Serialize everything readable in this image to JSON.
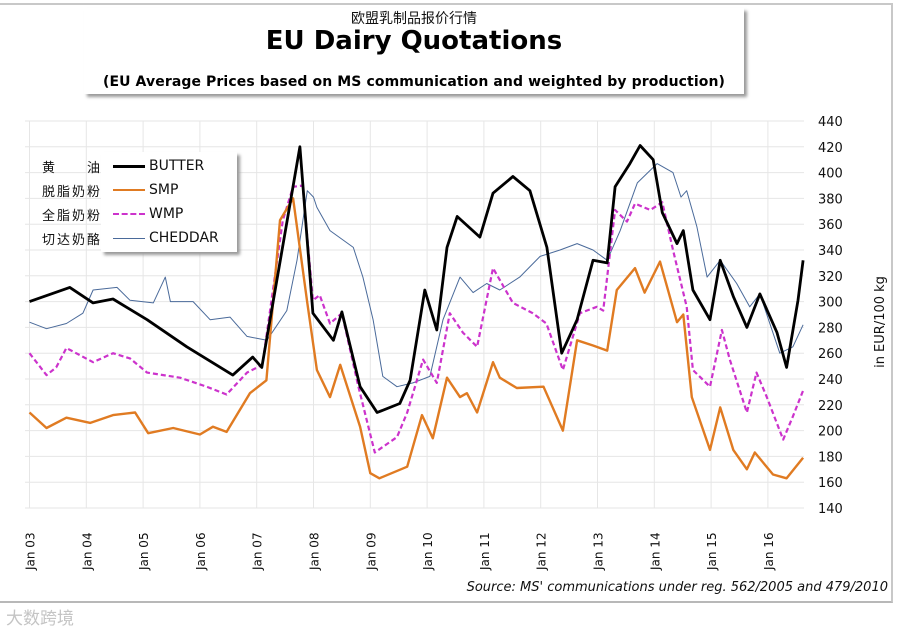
{
  "header": {
    "cn_title": "欧盟乳制品报价行情",
    "title": "EU Dairy Quotations",
    "subtitle": "(EU Average Prices based on MS communication and weighted by production)"
  },
  "source": "Source: MS' communications under reg. 562/2005 and 479/2010",
  "watermark": "大数跨境",
  "chart_data": {
    "type": "line",
    "title": "EU Dairy Quotations",
    "xlabel": "",
    "ylabel": "in EUR/100 kg",
    "xlim": [
      2002.92,
      2016.63
    ],
    "ylim": [
      140,
      440
    ],
    "grid": true,
    "legend_position": "top-left",
    "x_ticks": [
      2003,
      2004,
      2005,
      2006,
      2007,
      2008,
      2009,
      2010,
      2011,
      2012,
      2013,
      2014,
      2015,
      2016
    ],
    "x_tick_labels": [
      "Jan 03",
      "Jan 04",
      "Jan 05",
      "Jan 06",
      "Jan 07",
      "Jan 08",
      "Jan 09",
      "Jan 10",
      "Jan 11",
      "Jan 12",
      "Jan 13",
      "Jan 14",
      "Jan 15",
      "Jan 16"
    ],
    "y_ticks": [
      140,
      160,
      180,
      200,
      220,
      240,
      260,
      280,
      300,
      320,
      340,
      360,
      380,
      400,
      420,
      440
    ],
    "y_tick_labels": [
      "140",
      "160",
      "180",
      "200",
      "220",
      "240",
      "260",
      "280",
      "300",
      "320",
      "340",
      "360",
      "380",
      "400",
      "420",
      "440"
    ],
    "series": [
      {
        "name": "BUTTER",
        "cn_name": "黄　　油",
        "color": "#000000",
        "style": "solid-thick",
        "points": [
          [
            2003.0,
            300
          ],
          [
            2003.71,
            311
          ],
          [
            2004.12,
            299
          ],
          [
            2004.47,
            302
          ],
          [
            2005.07,
            286
          ],
          [
            2005.77,
            265
          ],
          [
            2006.58,
            243
          ],
          [
            2006.93,
            257
          ],
          [
            2007.09,
            249
          ],
          [
            2007.76,
            420
          ],
          [
            2007.99,
            291
          ],
          [
            2008.35,
            270
          ],
          [
            2008.5,
            292
          ],
          [
            2008.82,
            234
          ],
          [
            2009.12,
            214
          ],
          [
            2009.52,
            221
          ],
          [
            2009.7,
            239
          ],
          [
            2009.96,
            309
          ],
          [
            2010.17,
            278
          ],
          [
            2010.35,
            342
          ],
          [
            2010.53,
            366
          ],
          [
            2010.93,
            350
          ],
          [
            2011.16,
            384
          ],
          [
            2011.51,
            397
          ],
          [
            2011.81,
            386
          ],
          [
            2012.11,
            342
          ],
          [
            2012.37,
            260
          ],
          [
            2012.64,
            286
          ],
          [
            2012.92,
            332
          ],
          [
            2013.17,
            330
          ],
          [
            2013.31,
            389
          ],
          [
            2013.57,
            407
          ],
          [
            2013.75,
            421
          ],
          [
            2013.98,
            410
          ],
          [
            2014.14,
            369
          ],
          [
            2014.4,
            345
          ],
          [
            2014.51,
            355
          ],
          [
            2014.68,
            309
          ],
          [
            2014.98,
            286
          ],
          [
            2015.16,
            332
          ],
          [
            2015.39,
            304
          ],
          [
            2015.63,
            280
          ],
          [
            2015.86,
            306
          ],
          [
            2016.16,
            276
          ],
          [
            2016.33,
            249
          ],
          [
            2016.53,
            301
          ],
          [
            2016.62,
            332
          ]
        ]
      },
      {
        "name": "SMP",
        "cn_name": "脱脂奶粉",
        "color": "#e07b22",
        "style": "solid",
        "points": [
          [
            2003.0,
            214
          ],
          [
            2003.3,
            202
          ],
          [
            2003.65,
            210
          ],
          [
            2004.07,
            206
          ],
          [
            2004.47,
            212
          ],
          [
            2004.86,
            214
          ],
          [
            2005.09,
            198
          ],
          [
            2005.53,
            202
          ],
          [
            2006.0,
            197
          ],
          [
            2006.23,
            203
          ],
          [
            2006.47,
            199
          ],
          [
            2006.88,
            229
          ],
          [
            2007.17,
            239
          ],
          [
            2007.41,
            363
          ],
          [
            2007.64,
            380
          ],
          [
            2007.89,
            299
          ],
          [
            2008.06,
            247
          ],
          [
            2008.29,
            226
          ],
          [
            2008.47,
            251
          ],
          [
            2008.82,
            203
          ],
          [
            2009.0,
            167
          ],
          [
            2009.16,
            163
          ],
          [
            2009.65,
            172
          ],
          [
            2009.91,
            212
          ],
          [
            2010.1,
            194
          ],
          [
            2010.35,
            241
          ],
          [
            2010.58,
            226
          ],
          [
            2010.7,
            229
          ],
          [
            2010.88,
            214
          ],
          [
            2011.16,
            253
          ],
          [
            2011.28,
            241
          ],
          [
            2011.58,
            233
          ],
          [
            2012.05,
            234
          ],
          [
            2012.39,
            200
          ],
          [
            2012.64,
            270
          ],
          [
            2012.92,
            266
          ],
          [
            2013.17,
            262
          ],
          [
            2013.34,
            309
          ],
          [
            2013.66,
            326
          ],
          [
            2013.83,
            307
          ],
          [
            2014.1,
            331
          ],
          [
            2014.4,
            284
          ],
          [
            2014.51,
            290
          ],
          [
            2014.66,
            226
          ],
          [
            2014.98,
            185
          ],
          [
            2015.16,
            218
          ],
          [
            2015.39,
            185
          ],
          [
            2015.63,
            170
          ],
          [
            2015.77,
            183
          ],
          [
            2016.09,
            166
          ],
          [
            2016.33,
            163
          ],
          [
            2016.62,
            179
          ]
        ]
      },
      {
        "name": "WMP",
        "cn_name": "全脂奶粉",
        "color": "#cc33cc",
        "style": "dashed",
        "points": [
          [
            2003.0,
            260
          ],
          [
            2003.3,
            243
          ],
          [
            2003.47,
            249
          ],
          [
            2003.65,
            264
          ],
          [
            2004.12,
            253
          ],
          [
            2004.47,
            260
          ],
          [
            2004.77,
            256
          ],
          [
            2005.07,
            245
          ],
          [
            2005.65,
            241
          ],
          [
            2006.12,
            234
          ],
          [
            2006.47,
            228
          ],
          [
            2006.83,
            245
          ],
          [
            2007.1,
            251
          ],
          [
            2007.46,
            363
          ],
          [
            2007.64,
            389
          ],
          [
            2007.81,
            390
          ],
          [
            2007.99,
            301
          ],
          [
            2008.11,
            305
          ],
          [
            2008.29,
            283
          ],
          [
            2008.5,
            291
          ],
          [
            2008.79,
            234
          ],
          [
            2009.08,
            183
          ],
          [
            2009.47,
            195
          ],
          [
            2009.65,
            214
          ],
          [
            2009.93,
            255
          ],
          [
            2010.17,
            237
          ],
          [
            2010.4,
            291
          ],
          [
            2010.63,
            276
          ],
          [
            2010.88,
            265
          ],
          [
            2011.16,
            326
          ],
          [
            2011.51,
            299
          ],
          [
            2011.86,
            291
          ],
          [
            2012.1,
            283
          ],
          [
            2012.39,
            247
          ],
          [
            2012.69,
            291
          ],
          [
            2012.99,
            296
          ],
          [
            2013.1,
            293
          ],
          [
            2013.31,
            371
          ],
          [
            2013.52,
            362
          ],
          [
            2013.66,
            376
          ],
          [
            2013.93,
            371
          ],
          [
            2014.14,
            377
          ],
          [
            2014.33,
            340
          ],
          [
            2014.57,
            296
          ],
          [
            2014.68,
            247
          ],
          [
            2014.98,
            234
          ],
          [
            2015.19,
            278
          ],
          [
            2015.33,
            255
          ],
          [
            2015.63,
            214
          ],
          [
            2015.8,
            245
          ],
          [
            2015.98,
            226
          ],
          [
            2016.27,
            193
          ],
          [
            2016.44,
            211
          ],
          [
            2016.62,
            231
          ]
        ]
      },
      {
        "name": "CHEDDAR",
        "cn_name": "切达奶酪",
        "color": "#4a6a9a",
        "style": "thin",
        "points": [
          [
            2003.0,
            284
          ],
          [
            2003.3,
            279
          ],
          [
            2003.65,
            283
          ],
          [
            2003.94,
            291
          ],
          [
            2004.12,
            309
          ],
          [
            2004.54,
            311
          ],
          [
            2004.77,
            301
          ],
          [
            2005.18,
            299
          ],
          [
            2005.39,
            319
          ],
          [
            2005.48,
            300
          ],
          [
            2005.88,
            300
          ],
          [
            2006.18,
            286
          ],
          [
            2006.53,
            288
          ],
          [
            2006.83,
            273
          ],
          [
            2007.18,
            270
          ],
          [
            2007.53,
            293
          ],
          [
            2007.71,
            332
          ],
          [
            2007.89,
            386
          ],
          [
            2008.06,
            373
          ],
          [
            2008.0,
            381
          ],
          [
            2008.29,
            355
          ],
          [
            2008.7,
            342
          ],
          [
            2008.87,
            319
          ],
          [
            2009.05,
            286
          ],
          [
            2009.22,
            242
          ],
          [
            2009.47,
            234
          ],
          [
            2009.75,
            237
          ],
          [
            2010.05,
            242
          ],
          [
            2010.28,
            286
          ],
          [
            2010.58,
            319
          ],
          [
            2010.81,
            307
          ],
          [
            2011.05,
            314
          ],
          [
            2011.28,
            309
          ],
          [
            2011.63,
            319
          ],
          [
            2011.99,
            335
          ],
          [
            2012.34,
            340
          ],
          [
            2012.64,
            345
          ],
          [
            2012.92,
            340
          ],
          [
            2013.17,
            332
          ],
          [
            2013.4,
            355
          ],
          [
            2013.7,
            392
          ],
          [
            2014.05,
            407
          ],
          [
            2014.33,
            400
          ],
          [
            2014.47,
            381
          ],
          [
            2014.57,
            386
          ],
          [
            2014.75,
            358
          ],
          [
            2014.93,
            319
          ],
          [
            2015.16,
            332
          ],
          [
            2015.45,
            314
          ],
          [
            2015.68,
            296
          ],
          [
            2015.86,
            306
          ],
          [
            2016.21,
            260
          ],
          [
            2016.44,
            265
          ],
          [
            2016.62,
            282
          ]
        ]
      }
    ]
  }
}
